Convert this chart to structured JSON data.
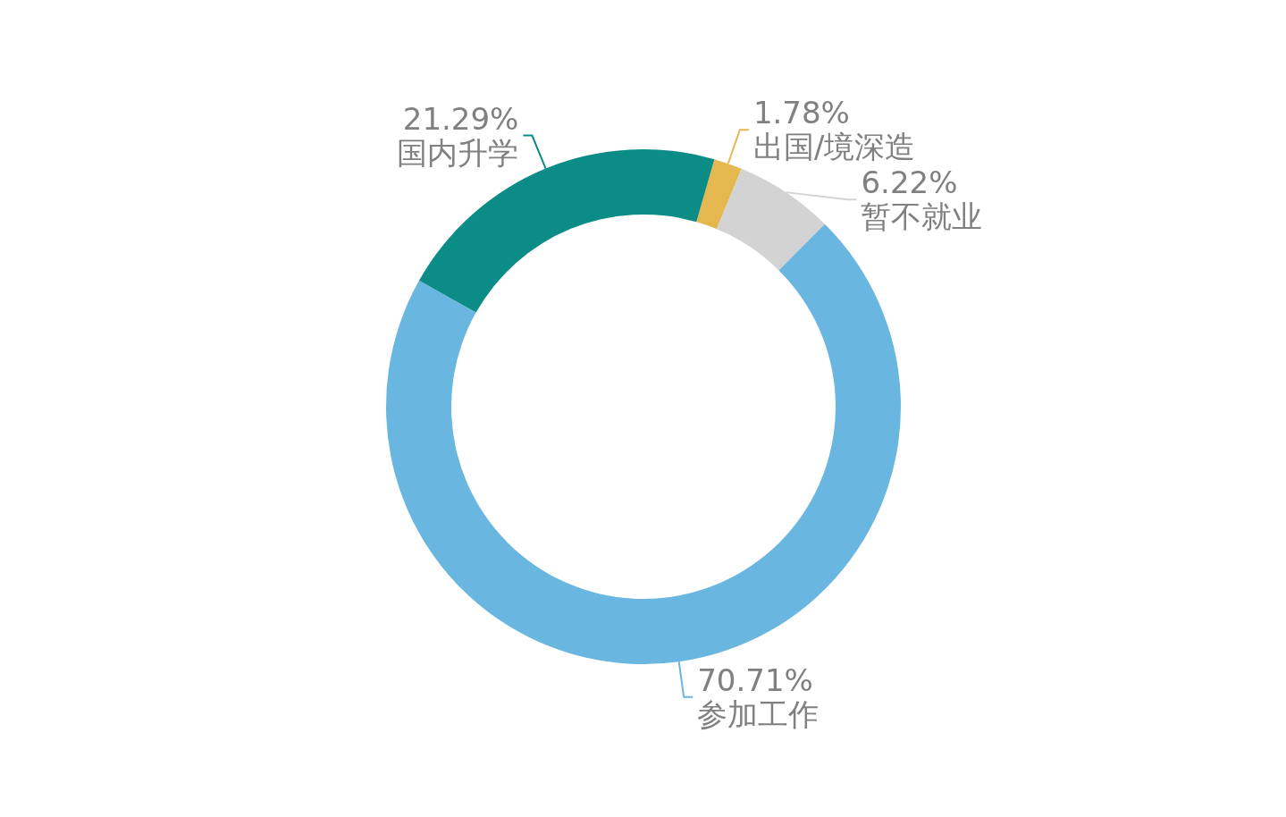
{
  "chart_data": {
    "type": "donut",
    "categories": [
      "出国/境深造",
      "暂不就业",
      "参加工作",
      "国内升学"
    ],
    "values": [
      1.78,
      6.22,
      70.71,
      21.29
    ],
    "value_labels": [
      "1.78%",
      "6.22%",
      "70.71%",
      "21.29%"
    ],
    "colors": [
      "#e5b84f",
      "#d3d3d3",
      "#69b6e0",
      "#0b8c87"
    ]
  }
}
